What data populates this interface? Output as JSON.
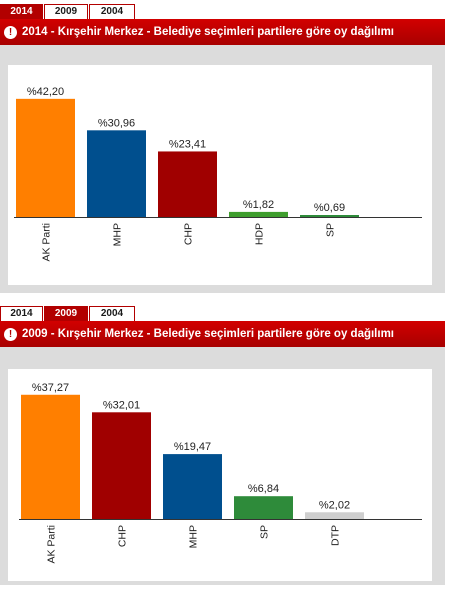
{
  "tabs": [
    {
      "label": "2014",
      "active": true
    },
    {
      "label": "2009",
      "active": false
    },
    {
      "label": "2004",
      "active": false
    }
  ],
  "tabs2": [
    {
      "label": "2014",
      "active": false
    },
    {
      "label": "2009",
      "active": true
    },
    {
      "label": "2004",
      "active": false
    }
  ],
  "info_icon": "info-icon",
  "chart_data": [
    {
      "type": "bar",
      "title": "2014 - Kırşehir Merkez - Belediye seçimleri partilere göre oy dağılımı",
      "categories": [
        "AK Parti",
        "MHP",
        "CHP",
        "HDP",
        "SP"
      ],
      "values": [
        42.2,
        30.96,
        23.41,
        1.82,
        0.69
      ],
      "labels": [
        "%42,20",
        "%30,96",
        "%23,41",
        "%1,82",
        "%0,69"
      ],
      "colors": [
        "#ff7f00",
        "#004f8e",
        "#a00000",
        "#3f9e2e",
        "#2e8b3a"
      ],
      "ylim": [
        0,
        50
      ],
      "grid": false,
      "legend": "none"
    },
    {
      "type": "bar",
      "title": "2009 - Kırşehir Merkez - Belediye seçimleri partilere göre oy dağılımı",
      "categories": [
        "AK Parti",
        "CHP",
        "MHP",
        "SP",
        "DTP"
      ],
      "values": [
        37.27,
        32.01,
        19.47,
        6.84,
        2.02
      ],
      "labels": [
        "%37,27",
        "%32,01",
        "%19,47",
        "%6,84",
        "%2,02"
      ],
      "colors": [
        "#ff7f00",
        "#a00000",
        "#004f8e",
        "#2e8b3a",
        "#cfcfcf"
      ],
      "ylim": [
        0,
        45
      ],
      "grid": false,
      "legend": "none"
    }
  ]
}
